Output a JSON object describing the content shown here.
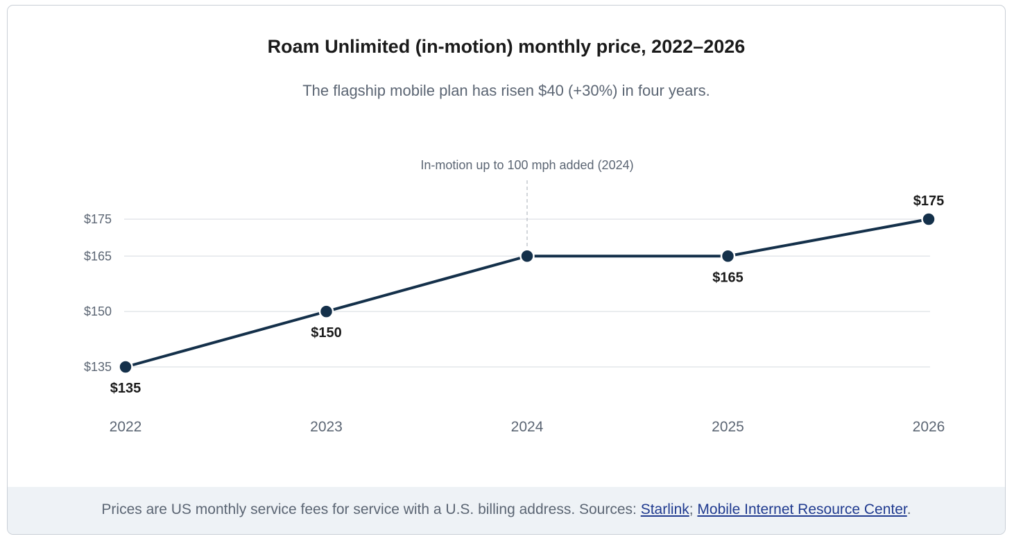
{
  "chart_data": {
    "type": "line",
    "title": "Roam Unlimited (in-motion) monthly price, 2022–2026",
    "subtitle": "The flagship mobile plan has risen $40 (+30%) in four years.",
    "x": [
      "2022",
      "2023",
      "2024",
      "2025",
      "2026"
    ],
    "series": [
      {
        "values": [
          135,
          150,
          165,
          165,
          175
        ]
      }
    ],
    "data_labels": [
      "$135",
      "$150",
      "",
      "$165",
      "$175"
    ],
    "y_ticks": [
      135,
      150,
      165,
      175
    ],
    "y_tick_labels": [
      "$135",
      "$150",
      "$165",
      "$175"
    ],
    "ylim": [
      135,
      175
    ],
    "grid": true,
    "annotation": {
      "x": "2024",
      "text": "In-motion up to 100 mph added (2024)"
    },
    "colors": {
      "line": "#14304a",
      "grid": "#e3e6ea",
      "annotation_line": "#c4c8cd"
    }
  },
  "footer": {
    "text_before": "Prices are US monthly service fees for service with a U.S. billing address. Sources: ",
    "link1": "Starlink",
    "separator": "; ",
    "link2": "Mobile Internet Resource Center",
    "text_after": "."
  }
}
